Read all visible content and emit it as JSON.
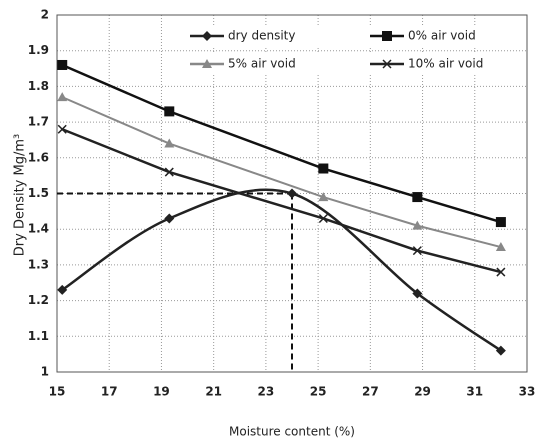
{
  "chart_data": {
    "type": "line",
    "x_label": "Moisture content (%)",
    "y_label": "Dry Density  Mg/m³",
    "xlim": [
      15,
      33
    ],
    "xticks": [
      15,
      17,
      19,
      21,
      23,
      25,
      27,
      29,
      31,
      33
    ],
    "ylim": [
      1,
      2
    ],
    "yticks": [
      1,
      {
        "value": 1.1,
        "label": "1.1"
      },
      {
        "value": 1.2,
        "label": "1.2"
      },
      {
        "value": 1.3,
        "label": "1.3"
      },
      {
        "value": 1.4,
        "label": "1.4"
      },
      {
        "value": 1.5,
        "label": "1.5"
      },
      {
        "value": 1.6,
        "label": "1.6"
      },
      {
        "value": 1.7,
        "label": "1.7"
      },
      {
        "value": 1.8,
        "label": "1.8"
      },
      {
        "value": 1.9,
        "label": "1.9"
      },
      2
    ],
    "grid": true,
    "legend": "top",
    "series": [
      {
        "name": "dry density",
        "color": "#222",
        "marker": "diamond",
        "smooth": true,
        "x": [
          15.2,
          19.3,
          24,
          28.8,
          32
        ],
        "values": [
          1.23,
          1.43,
          1.5,
          1.22,
          1.06
        ]
      },
      {
        "name": "0% air void",
        "color": "#111",
        "marker": "square",
        "x": [
          15.2,
          19.3,
          25.2,
          28.8,
          32
        ],
        "values": [
          1.86,
          1.73,
          1.57,
          1.49,
          1.42
        ]
      },
      {
        "name": "5% air void",
        "color": "#888",
        "marker": "triangle",
        "x": [
          15.2,
          19.3,
          25.2,
          28.8,
          32
        ],
        "values": [
          1.77,
          1.64,
          1.49,
          1.41,
          1.35
        ]
      },
      {
        "name": "10% air void",
        "color": "#222",
        "marker": "cross",
        "x": [
          15.2,
          19.3,
          25.2,
          28.8,
          32
        ],
        "values": [
          1.68,
          1.56,
          1.43,
          1.34,
          1.28
        ]
      }
    ],
    "reference": {
      "x": 24,
      "y": 1.5
    }
  }
}
